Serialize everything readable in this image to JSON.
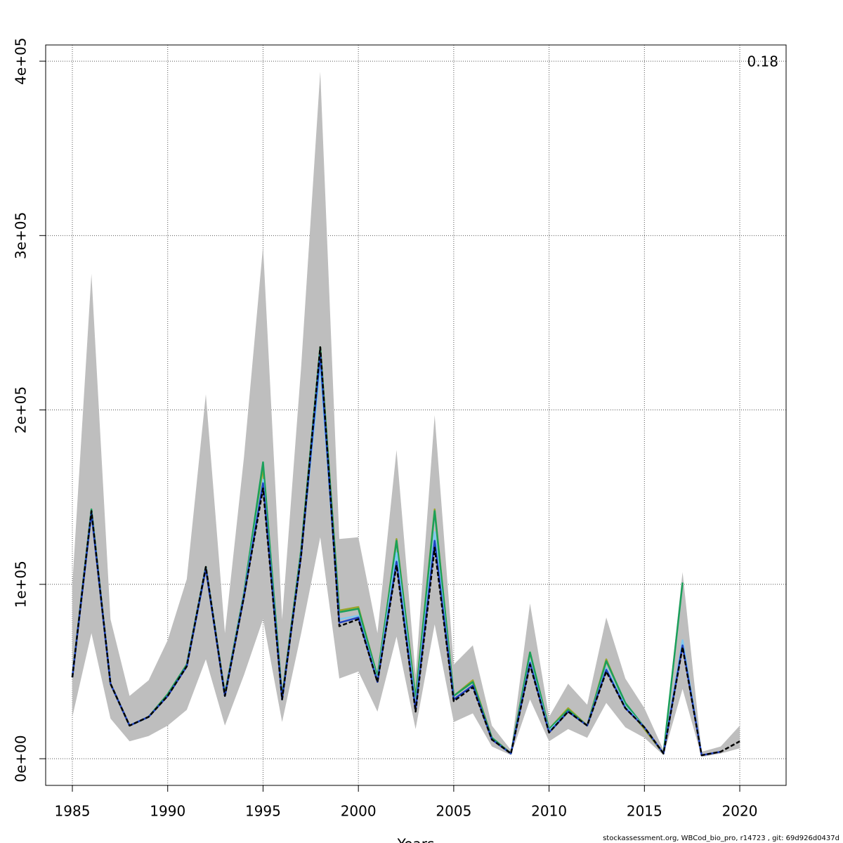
{
  "chart_data": {
    "type": "line",
    "xlabel": "Years",
    "annotation": "0.18",
    "footer": "stockassessment.org, WBCod_bio_pro, r14723 , git: 69d926d0437d",
    "x": [
      1985,
      1986,
      1987,
      1988,
      1989,
      1990,
      1991,
      1992,
      1993,
      1994,
      1995,
      1996,
      1997,
      1998,
      1999,
      2000,
      2001,
      2002,
      2003,
      2004,
      2005,
      2006,
      2007,
      2008,
      2009,
      2010,
      2011,
      2012,
      2013,
      2014,
      2015,
      2016,
      2017,
      2018,
      2019,
      2020
    ],
    "band": {
      "color": "#bebebe",
      "lower": [
        24000,
        72000,
        23000,
        10000,
        13000,
        19000,
        28000,
        57000,
        19000,
        48000,
        80000,
        21000,
        72000,
        127000,
        46000,
        50000,
        27000,
        70000,
        17000,
        77000,
        21000,
        26000,
        7000,
        2000,
        34000,
        10000,
        17000,
        12000,
        32000,
        18000,
        12000,
        2000,
        40000,
        1000,
        3000,
        6000
      ],
      "upper": [
        100000,
        278000,
        80000,
        36000,
        45000,
        68000,
        103000,
        209000,
        72000,
        173000,
        294000,
        80000,
        225000,
        394000,
        126000,
        127000,
        72000,
        177000,
        48000,
        197000,
        54000,
        65000,
        19000,
        5000,
        89000,
        24000,
        43000,
        31000,
        81000,
        46000,
        29000,
        5000,
        107000,
        4000,
        7000,
        19000
      ]
    },
    "series": [
      {
        "color": "#9aa52a",
        "values": [
          47000,
          142000,
          43000,
          19000,
          24000,
          37000,
          54000,
          109000,
          37000,
          94000,
          167000,
          35000,
          120000,
          236000,
          85000,
          87000,
          47000,
          126000,
          35000,
          143000,
          36000,
          45000,
          12000,
          3000,
          61000,
          17000,
          29000,
          19000,
          57000,
          31000,
          17000,
          3000,
          null,
          null,
          null,
          null
        ]
      },
      {
        "color": "#1aa05a",
        "values": [
          47000,
          143000,
          43000,
          19000,
          24000,
          37000,
          54000,
          110000,
          37000,
          95000,
          170000,
          35000,
          120000,
          236000,
          84000,
          86000,
          47000,
          125000,
          34000,
          142000,
          36000,
          44000,
          12000,
          3000,
          61000,
          17000,
          28000,
          19000,
          56000,
          32000,
          18000,
          3000,
          101000,
          null,
          null,
          null
        ]
      },
      {
        "color": "#7ec8f0",
        "values": [
          46700,
          141000,
          43000,
          19000,
          24000,
          36000,
          53000,
          109000,
          36000,
          94000,
          160000,
          34000,
          118000,
          225000,
          80000,
          82000,
          45000,
          118000,
          30000,
          130000,
          34000,
          42000,
          11000,
          3000,
          56000,
          16000,
          27000,
          19000,
          52000,
          30000,
          18000,
          3000,
          68000,
          2000,
          null,
          null
        ]
      },
      {
        "color": "#2040c0",
        "values": [
          46700,
          141000,
          43000,
          19000,
          24000,
          36000,
          53000,
          109000,
          36000,
          93000,
          158000,
          34000,
          117000,
          232000,
          78000,
          81000,
          44000,
          113000,
          28000,
          125000,
          34000,
          42000,
          11000,
          3000,
          55000,
          15000,
          27000,
          19000,
          51000,
          29000,
          18000,
          3000,
          65000,
          2000,
          4000,
          null
        ]
      },
      {
        "color": "#000000",
        "dashed": true,
        "values": [
          46700,
          142000,
          43000,
          19000,
          24000,
          36000,
          53000,
          110000,
          36000,
          93000,
          155000,
          34000,
          117000,
          236000,
          76000,
          80000,
          44000,
          111000,
          27000,
          121000,
          33000,
          41000,
          11000,
          3000,
          54000,
          15000,
          27000,
          19000,
          50000,
          29000,
          18000,
          3000,
          64000,
          2000,
          4000,
          10000
        ]
      }
    ],
    "xlim": [
      1983.6,
      2022.43
    ],
    "ylim": [
      -15300,
      409300
    ],
    "xticks": [
      1985,
      1990,
      1995,
      2000,
      2005,
      2010,
      2015,
      2020
    ],
    "yticks": [
      {
        "value": 0,
        "label": "0e+00"
      },
      {
        "value": 100000,
        "label": "1e+05"
      },
      {
        "value": 200000,
        "label": "2e+05"
      },
      {
        "value": 300000,
        "label": "3e+05"
      },
      {
        "value": 400000,
        "label": "4e+05"
      }
    ],
    "grid": true
  }
}
